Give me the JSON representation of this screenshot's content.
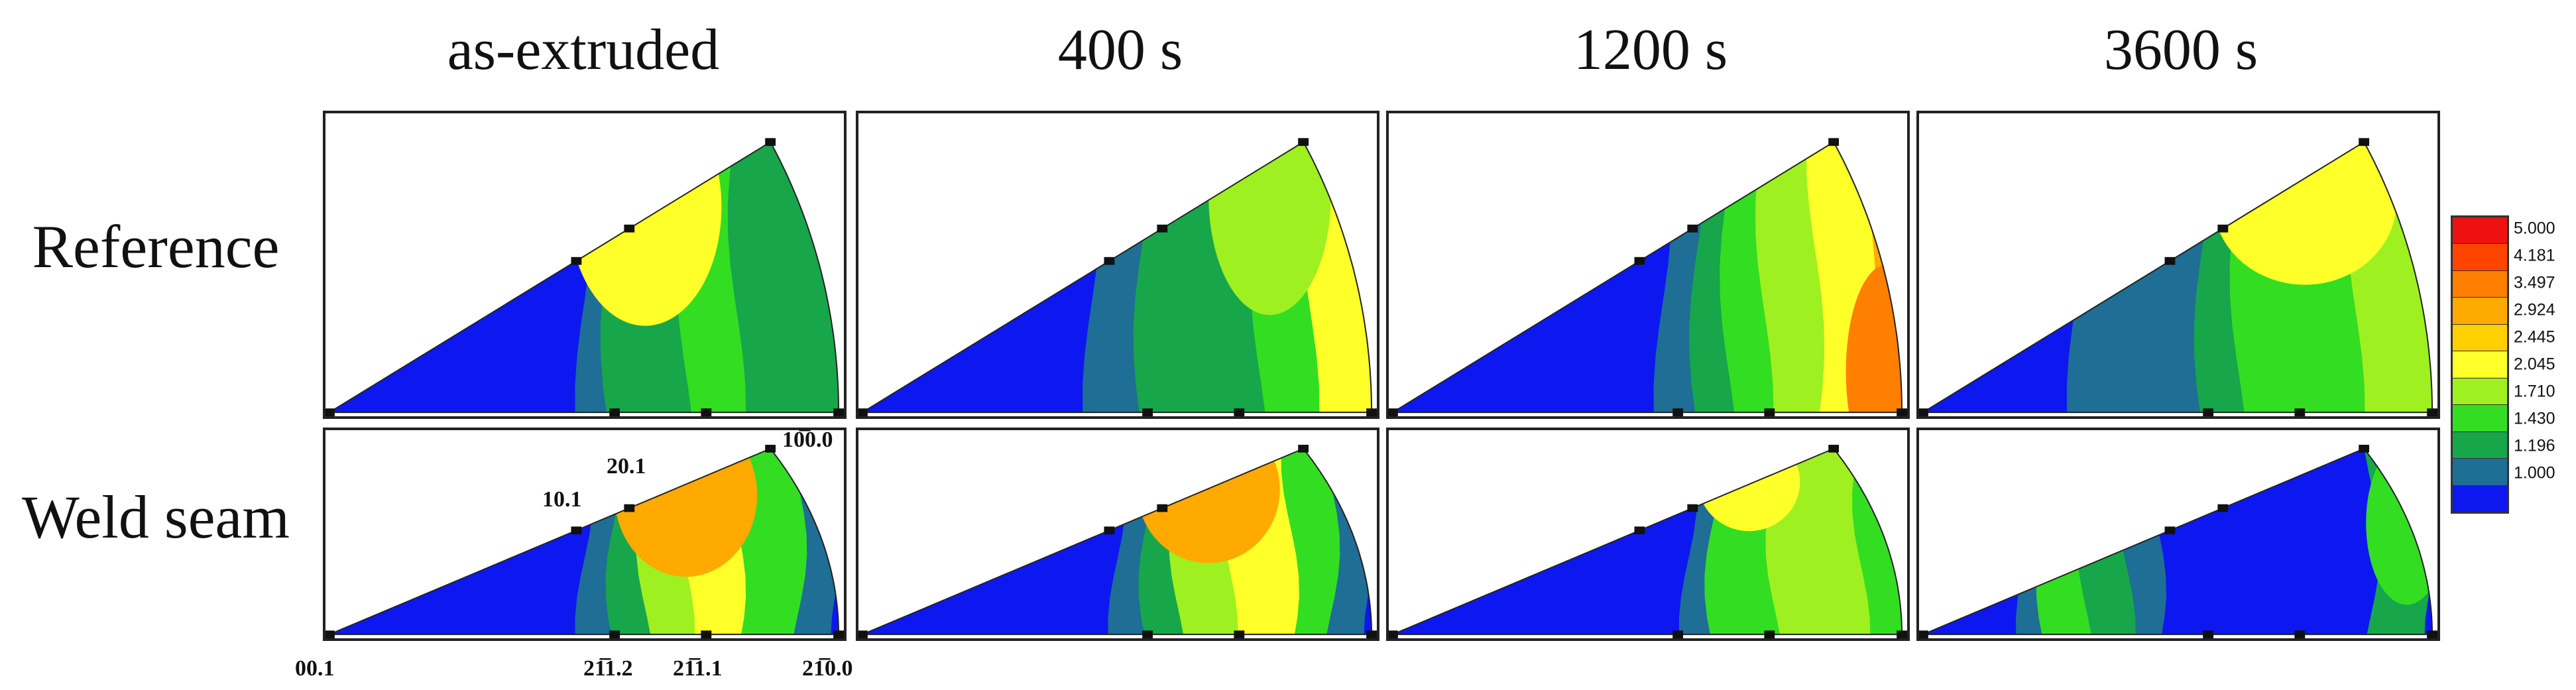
{
  "columns": [
    "as-extruded",
    "400 s",
    "1200 s",
    "3600 s"
  ],
  "rows": [
    "Reference",
    "Weld seam"
  ],
  "legend": {
    "values": [
      "5.000",
      "4.181",
      "3.497",
      "2.924",
      "2.445",
      "2.045",
      "1.710",
      "1.430",
      "1.196",
      "1.000"
    ],
    "colors": [
      "#ee1111",
      "#ff4400",
      "#ff7f00",
      "#ffaa00",
      "#ffd000",
      "#ffff2a",
      "#9ef021",
      "#33dd22",
      "#17a64a",
      "#1e6e96",
      "#0d18f0"
    ]
  },
  "pole_labels": {
    "p1010": "10.1",
    "p2021": "20.1",
    "p1010top": "10̅0.0",
    "p0001": "00.1",
    "p2112": "21̅1.2",
    "p2111": "21̅1.1",
    "p2110": "21̅0.0"
  },
  "contour_maps": [
    [
      {
        "blue": 0.5,
        "levels": [
          [
            0.5,
            0.61,
            1
          ],
          [
            0.55,
            0.7,
            2
          ],
          [
            0.7,
            0.8,
            3
          ],
          [
            0.8,
            1.0,
            2
          ]
        ],
        "hot": {
          "c": [
            0.62,
            0.76
          ],
          "r": [
            0.15,
            0.2
          ],
          "lvl": 5
        }
      },
      {
        "blue": 0.45,
        "levels": [
          [
            0.45,
            0.55,
            1
          ],
          [
            0.55,
            0.78,
            2
          ],
          [
            0.78,
            0.88,
            3
          ],
          [
            0.88,
            1.0,
            5
          ]
        ],
        "hot": {
          "c": [
            0.8,
            0.8
          ],
          "r": [
            0.12,
            0.2
          ],
          "lvl": 4
        }
      },
      {
        "blue": 0.53,
        "levels": [
          [
            0.53,
            0.6,
            1
          ],
          [
            0.6,
            0.66,
            2
          ],
          [
            0.66,
            0.73,
            3
          ],
          [
            0.73,
            0.83,
            4
          ],
          [
            0.83,
            0.93,
            5
          ],
          [
            0.93,
            1.0,
            7
          ]
        ],
        "hot": {
          "c": [
            0.97,
            0.15
          ],
          "r": [
            0.08,
            0.18
          ],
          "lvl": 8
        }
      },
      {
        "blue": 0.3,
        "levels": [
          [
            0.3,
            0.55,
            1
          ],
          [
            0.55,
            0.62,
            2
          ],
          [
            0.62,
            0.85,
            3
          ],
          [
            0.85,
            1.0,
            4
          ]
        ],
        "hot": {
          "c": [
            0.75,
            0.78
          ],
          "r": [
            0.18,
            0.14
          ],
          "lvl": 5
        }
      }
    ],
    [
      {
        "blue": 0.5,
        "levels": [
          [
            0.5,
            0.56,
            1
          ],
          [
            0.56,
            0.62,
            2
          ],
          [
            0.62,
            0.7,
            4
          ],
          [
            0.7,
            0.8,
            5
          ],
          [
            0.8,
            0.92,
            3
          ],
          [
            0.92,
            1.0,
            1
          ]
        ],
        "hot": {
          "c": [
            0.7,
            0.75
          ],
          "r": [
            0.14,
            0.2
          ],
          "lvl": 7
        }
      },
      {
        "blue": 0.5,
        "levels": [
          [
            0.5,
            0.56,
            1
          ],
          [
            0.56,
            0.62,
            2
          ],
          [
            0.62,
            0.72,
            4
          ],
          [
            0.72,
            0.84,
            5
          ],
          [
            0.84,
            0.92,
            3
          ],
          [
            0.92,
            1.0,
            1
          ]
        ],
        "hot": {
          "c": [
            0.68,
            0.78
          ],
          "r": [
            0.14,
            0.18
          ],
          "lvl": 7
        }
      },
      {
        "blue": 0.58,
        "levels": [
          [
            0.58,
            0.63,
            1
          ],
          [
            0.63,
            0.75,
            3
          ],
          [
            0.75,
            0.92,
            4
          ],
          [
            0.92,
            1.0,
            3
          ]
        ],
        "hot": {
          "c": [
            0.7,
            0.82
          ],
          "r": [
            0.1,
            0.12
          ],
          "lvl": 5
        }
      },
      {
        "blue": 0.25,
        "levels": [
          [
            0.2,
            0.24,
            1
          ],
          [
            0.24,
            0.32,
            3
          ],
          [
            0.32,
            0.4,
            2
          ],
          [
            0.4,
            0.46,
            1
          ],
          [
            0.46,
            0.88,
            0
          ],
          [
            0.88,
            1.0,
            2
          ]
        ],
        "hot": {
          "c": [
            0.95,
            0.6
          ],
          "r": [
            0.08,
            0.2
          ],
          "lvl": 3
        }
      }
    ]
  ]
}
